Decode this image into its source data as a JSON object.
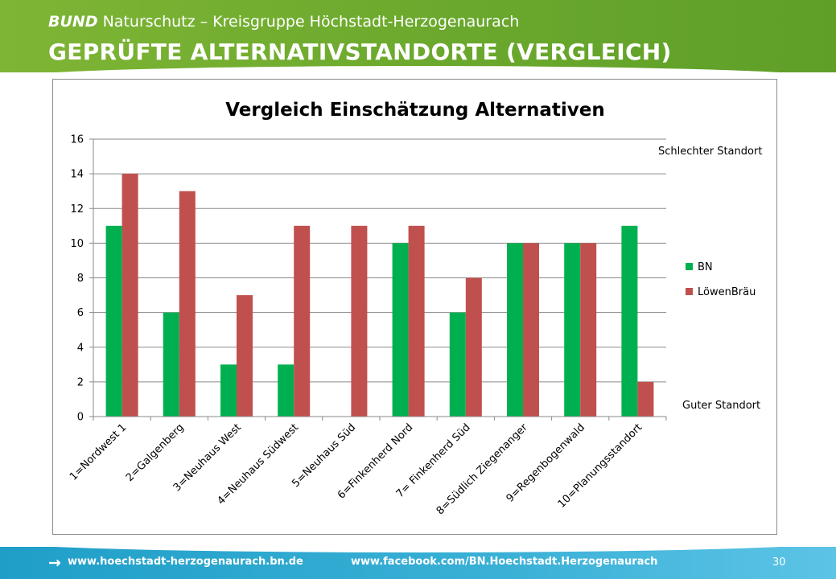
{
  "header": {
    "brand": "BUND",
    "org": "Naturschutz – Kreisgruppe Höchstadt-Herzogenaurach",
    "title": "GEPRÜFTE ALTERNATIVSTANDORTE (VERGLEICH)"
  },
  "footer": {
    "arrow_icon": "arrow-right-icon",
    "link1": "www.hoechstadt-herzogenaurach.bn.de",
    "link2": "www.facebook.com/BN.Hoechstadt.Herzogenaurach",
    "page": "30"
  },
  "chart_data": {
    "type": "bar",
    "title": "Vergleich Einschätzung Alternativen",
    "categories": [
      "1=Nordwest 1",
      "2=Galgenberg",
      "3=Neuhaus West",
      "4=Neuhaus Südwest",
      "5=Neuhaus Süd",
      "6=Finkenherd Nord",
      "7= Finkenherd Süd",
      "8=Südlich Ziegenanger",
      "9=Regenbogenwald",
      "10=Planungsstandort"
    ],
    "series": [
      {
        "name": "BN",
        "color": "#00b050",
        "values": [
          11,
          6,
          3,
          3,
          0,
          10,
          6,
          10,
          10,
          11
        ]
      },
      {
        "name": "LöwenBräu",
        "color": "#c0504d",
        "values": [
          14,
          13,
          7,
          11,
          11,
          11,
          8,
          10,
          10,
          2
        ]
      }
    ],
    "ylim": [
      0,
      16
    ],
    "yticks": [
      "0",
      "2",
      "4",
      "6",
      "8",
      "10",
      "12",
      "14",
      "16"
    ],
    "grid": true,
    "legend": "right",
    "annotations": {
      "top": "Schlechter Standort",
      "bottom": "Guter Standort"
    }
  }
}
